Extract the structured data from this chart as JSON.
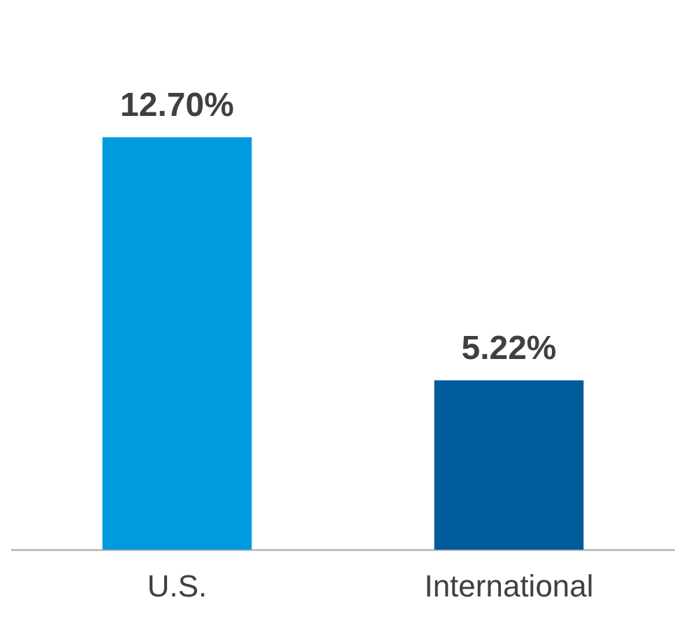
{
  "chart_data": {
    "type": "bar",
    "categories": [
      "U.S.",
      "International"
    ],
    "values": [
      12.7,
      5.22
    ],
    "colors": [
      "#009ade",
      "#005b9a"
    ],
    "value_labels": [
      "12.70%",
      "5.22%"
    ],
    "grid": false,
    "legend": false
  }
}
